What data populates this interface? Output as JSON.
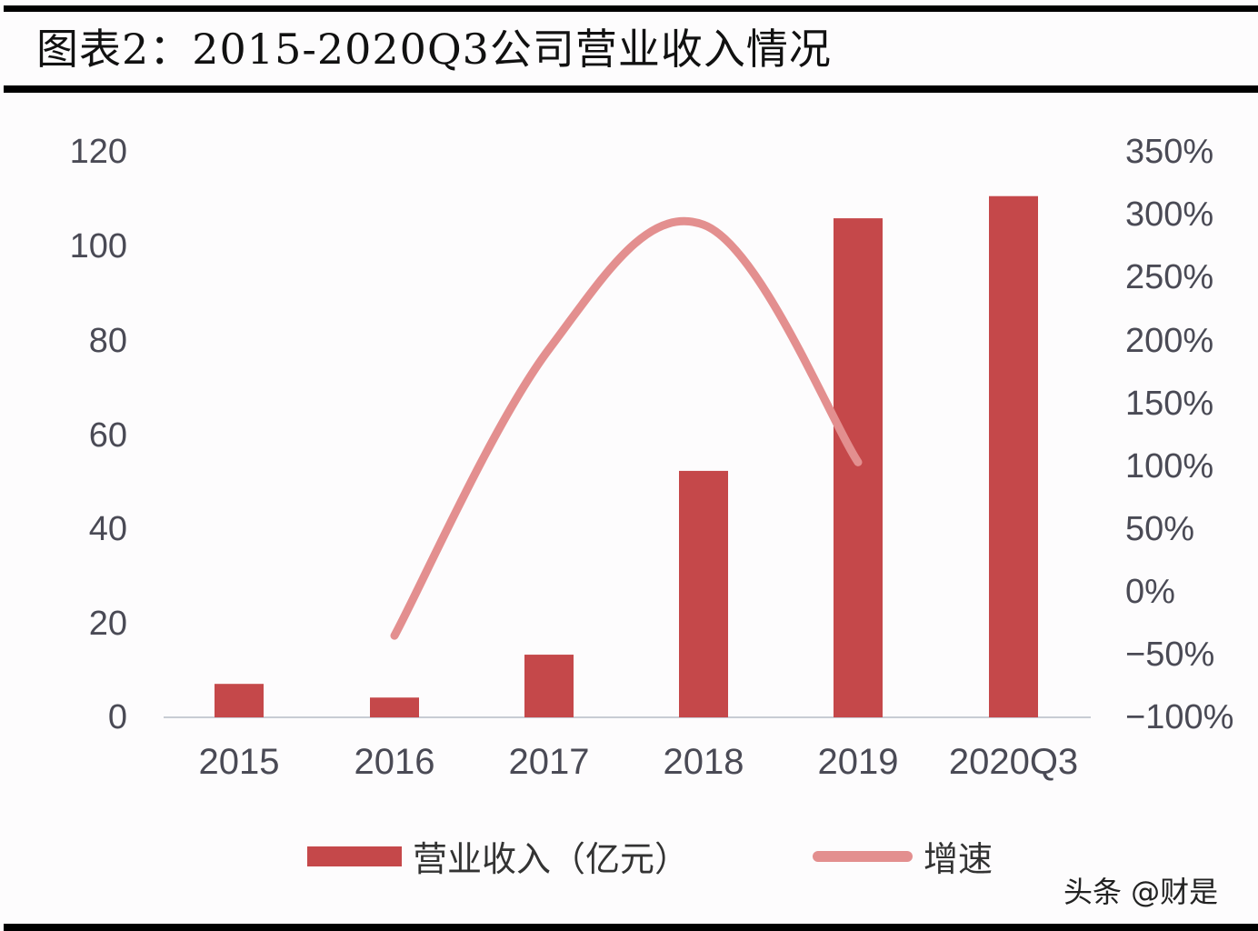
{
  "header": {
    "title": "图表2：2015-2020Q3公司营业收入情况"
  },
  "legend": {
    "bar_label": "营业收入（亿元）",
    "line_label": "增速"
  },
  "watermark": "头条 @财是",
  "axes": {
    "left_ticks": [
      "120",
      "100",
      "80",
      "60",
      "40",
      "20",
      "0"
    ],
    "right_ticks": [
      "350%",
      "300%",
      "250%",
      "200%",
      "150%",
      "100%",
      "50%",
      "0%",
      "−50%",
      "−100%"
    ],
    "x_ticks": [
      "2015",
      "2016",
      "2017",
      "2018",
      "2019",
      "2020Q3"
    ]
  },
  "colors": {
    "bar": "#c5484a",
    "line": "#e38f8f",
    "axis_line": "#c8ccd4",
    "tick_text": "#4a4a55"
  },
  "chart_data": {
    "type": "bar",
    "title": "图表2：2015-2020Q3公司营业收入情况",
    "categories": [
      "2015",
      "2016",
      "2017",
      "2018",
      "2019",
      "2020Q3"
    ],
    "series": [
      {
        "name": "营业收入（亿元）",
        "type": "bar",
        "axis": "left",
        "values": [
          7.1,
          4.2,
          13.3,
          52.3,
          105.9,
          110.6
        ]
      },
      {
        "name": "增速",
        "type": "line",
        "axis": "right",
        "unit": "%",
        "values": [
          null,
          -35,
          193,
          292,
          103,
          null
        ]
      }
    ],
    "xlabel": "",
    "ylabel": "",
    "ylim": [
      0,
      120
    ],
    "y2lim": [
      -100,
      350
    ],
    "grid": false,
    "legend_position": "bottom"
  }
}
